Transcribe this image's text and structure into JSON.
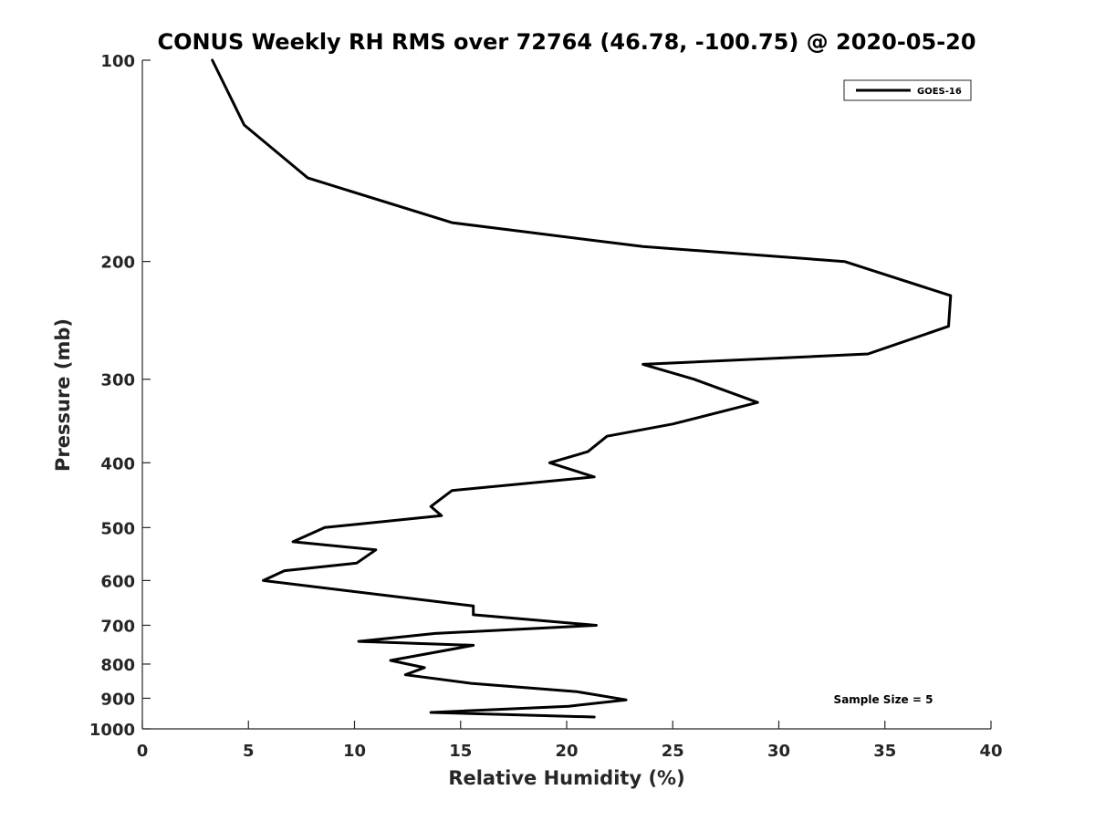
{
  "chart_data": {
    "type": "line",
    "title": "CONUS Weekly RH RMS over 72764 (46.78, -100.75) @ 2020-05-20",
    "xlabel": "Relative Humidity (%)",
    "ylabel": "Pressure (mb)",
    "xlim": [
      0,
      40
    ],
    "ylim": [
      100,
      1000
    ],
    "yscale": "log",
    "y_reversed": true,
    "x_ticks": [
      "0",
      "5",
      "10",
      "15",
      "20",
      "25",
      "30",
      "35",
      "40"
    ],
    "y_ticks": [
      "100",
      "200",
      "300",
      "400",
      "500",
      "600",
      "700",
      "800",
      "900",
      "1000"
    ],
    "grid": false,
    "legend_position": "top-right",
    "annotation": "Sample Size = 5",
    "series": [
      {
        "name": "GOES-16",
        "color": "#000000",
        "points": [
          [
            3.3,
            100
          ],
          [
            4.8,
            125
          ],
          [
            7.8,
            150
          ],
          [
            14.6,
            175
          ],
          [
            23.6,
            190
          ],
          [
            33.1,
            200
          ],
          [
            38.1,
            225
          ],
          [
            38.0,
            250
          ],
          [
            34.2,
            275
          ],
          [
            23.6,
            285
          ],
          [
            26.0,
            300
          ],
          [
            29.0,
            325
          ],
          [
            25.0,
            350
          ],
          [
            21.9,
            365
          ],
          [
            21.0,
            385
          ],
          [
            19.2,
            400
          ],
          [
            21.3,
            420
          ],
          [
            14.6,
            440
          ],
          [
            13.6,
            465
          ],
          [
            14.1,
            480
          ],
          [
            8.6,
            500
          ],
          [
            7.1,
            525
          ],
          [
            11.0,
            540
          ],
          [
            10.1,
            565
          ],
          [
            6.7,
            580
          ],
          [
            5.7,
            600
          ],
          [
            15.6,
            655
          ],
          [
            15.6,
            675
          ],
          [
            21.4,
            700
          ],
          [
            13.8,
            720
          ],
          [
            10.2,
            740
          ],
          [
            15.6,
            750
          ],
          [
            11.7,
            790
          ],
          [
            13.3,
            810
          ],
          [
            12.4,
            830
          ],
          [
            15.5,
            855
          ],
          [
            20.5,
            880
          ],
          [
            22.8,
            905
          ],
          [
            20.1,
            925
          ],
          [
            13.6,
            945
          ],
          [
            21.3,
            960
          ]
        ]
      }
    ]
  }
}
